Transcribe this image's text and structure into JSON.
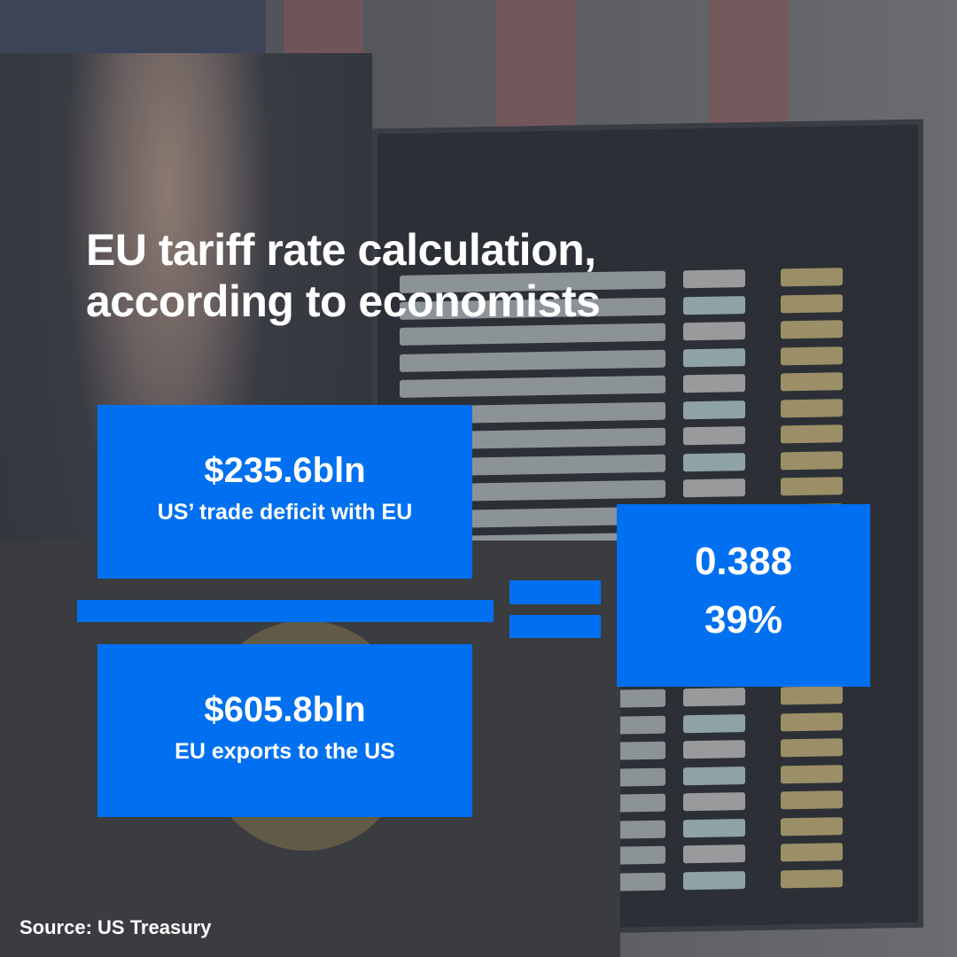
{
  "title_line1": "EU tariff rate calculation,",
  "title_line2": "according to economists",
  "numerator": {
    "value": "$235.6bln",
    "label": "US’ trade deficit with EU"
  },
  "denominator": {
    "value": "$605.8bln",
    "label": "EU exports to the US"
  },
  "result": {
    "ratio": "0.388",
    "percent": "39%"
  },
  "source": "Source: US Treasury",
  "colors": {
    "accent": "#0070f0",
    "text": "#ffffff"
  }
}
